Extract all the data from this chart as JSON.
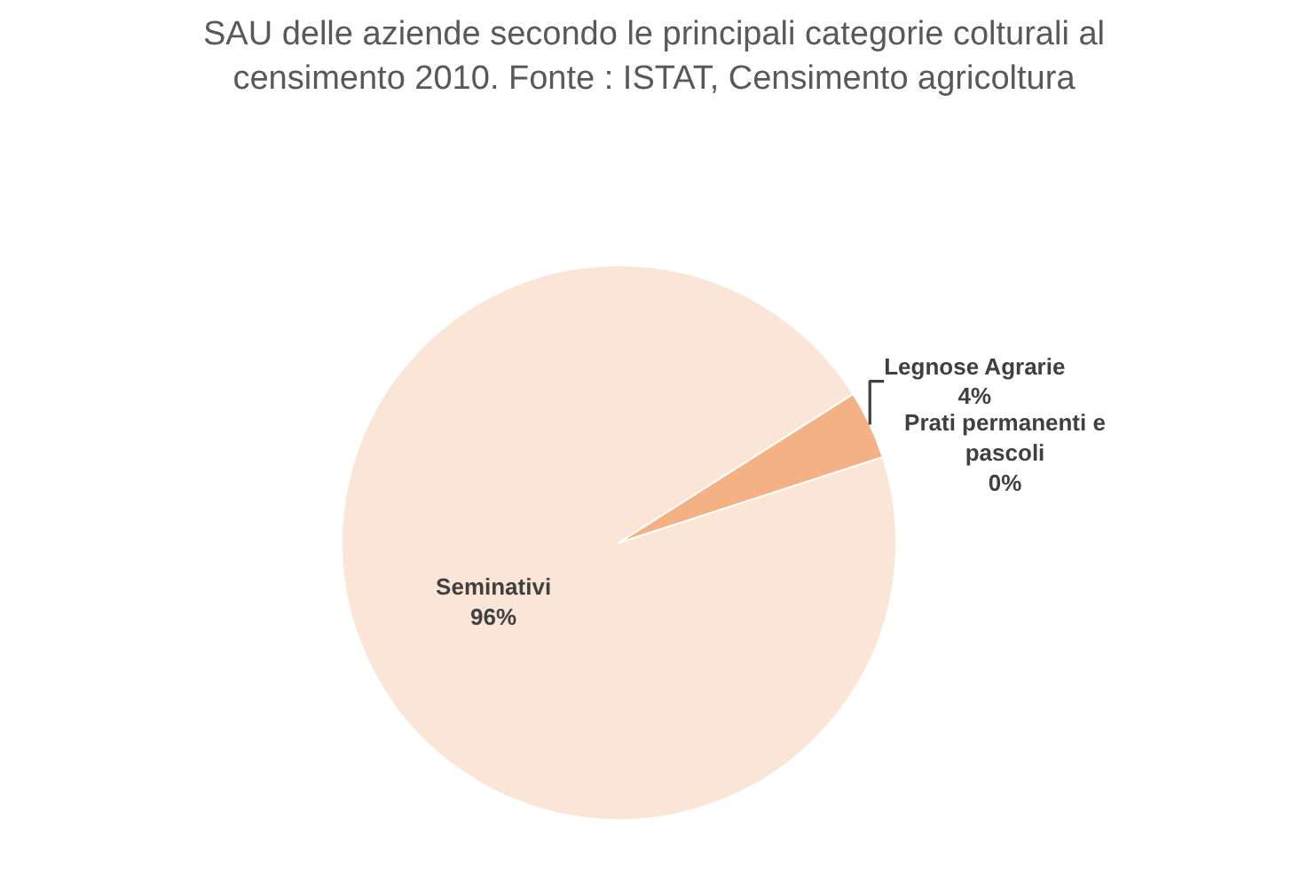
{
  "chart_data": {
    "type": "pie",
    "title": "SAU delle aziende secondo le principali categorie colturali al censimento 2010. Fonte : ISTAT, Censimento agricoltura",
    "categories": [
      "Seminativi",
      "Legnose Agrarie",
      "Prati permanenti e pascoli"
    ],
    "values": [
      96,
      4,
      0
    ],
    "value_labels": [
      "96%",
      "4%",
      "0%"
    ],
    "colors": [
      "#fbe5d6",
      "#f4b183",
      "#c55a11"
    ],
    "legend": false
  }
}
